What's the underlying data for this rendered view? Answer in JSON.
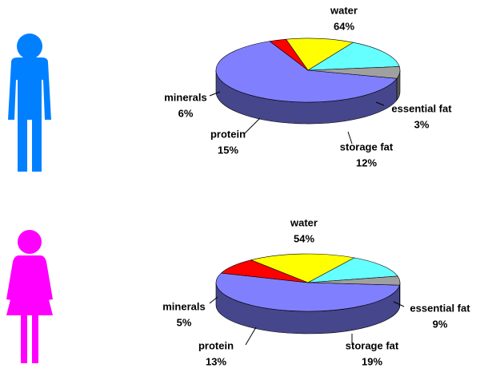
{
  "chart_data": [
    {
      "type": "pie",
      "categories": [
        "water",
        "essential fat",
        "storage fat",
        "protein",
        "minerals"
      ],
      "values": [
        64,
        3,
        12,
        15,
        6
      ],
      "value_labels": [
        "64%",
        "3%",
        "12%",
        "15%",
        "6%"
      ],
      "colors": [
        "#8080ff",
        "#ff0000",
        "#ffff00",
        "#66ffff",
        "#a0a0a0"
      ]
    },
    {
      "type": "pie",
      "categories": [
        "water",
        "essential fat",
        "storage fat",
        "protein",
        "minerals"
      ],
      "values": [
        54,
        9,
        19,
        13,
        5
      ],
      "value_labels": [
        "54%",
        "9%",
        "19%",
        "13%",
        "5%"
      ],
      "colors": [
        "#8080ff",
        "#ff0000",
        "#ffff00",
        "#66ffff",
        "#a0a0a0"
      ]
    }
  ]
}
